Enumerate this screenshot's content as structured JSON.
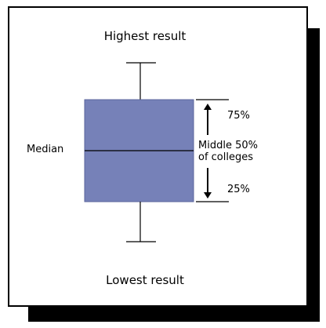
{
  "labels": {
    "highest": "Highest result",
    "lowest": "Lowest result",
    "median": "Median",
    "q3": "75%",
    "q1": "25%",
    "middle_line1": "Middle 50%",
    "middle_line2": "of colleges"
  },
  "colors": {
    "box_fill": "#7681b8",
    "box_stroke": "#5b659c",
    "line": "#000000",
    "shadow": "#000000",
    "background": "#ffffff"
  }
}
